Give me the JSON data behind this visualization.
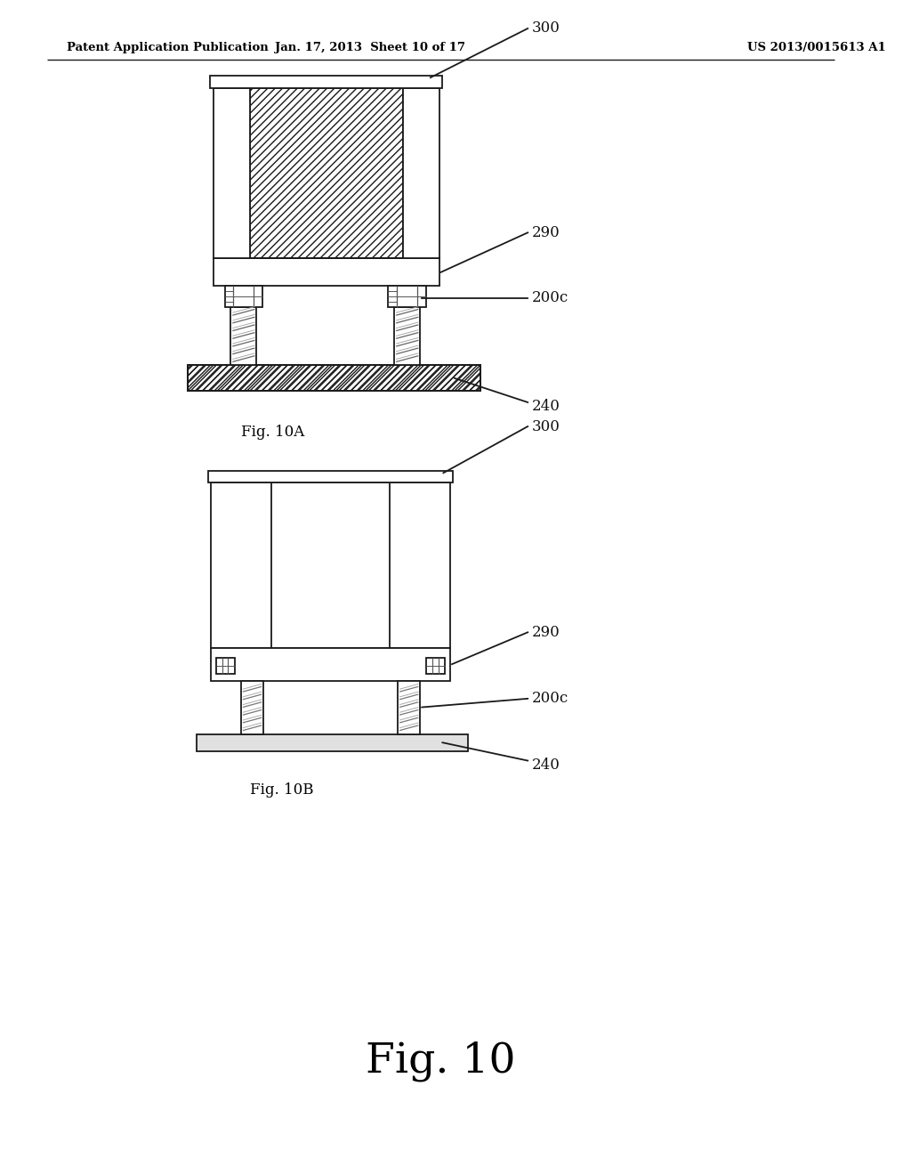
{
  "bg_color": "#ffffff",
  "header_left": "Patent Application Publication",
  "header_mid": "Jan. 17, 2013  Sheet 10 of 17",
  "header_right": "US 2013/0015613 A1",
  "fig_main_label": "Fig. 10",
  "fig10a_label": "Fig. 10A",
  "fig10b_label": "Fig. 10B",
  "line_color": "#1a1a1a",
  "label_color": "#111111"
}
